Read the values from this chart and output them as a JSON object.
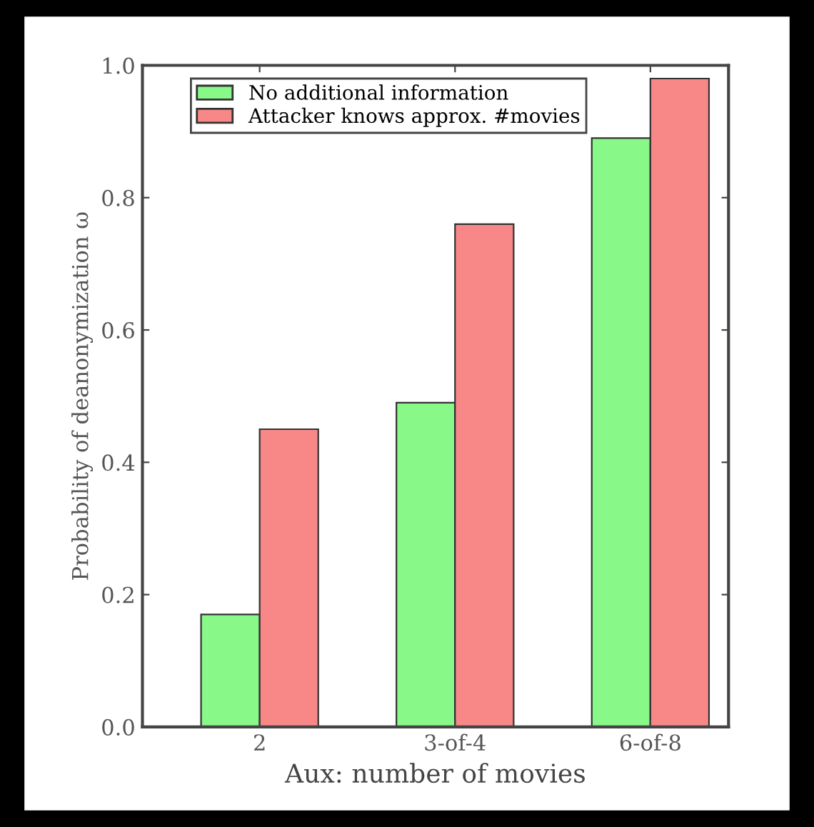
{
  "chart_data": {
    "type": "bar",
    "xlabel": "Aux: number of movies",
    "ylabel": "Probability of deanonymization ω",
    "categories": [
      "2",
      "3-of-4",
      "6-of-8"
    ],
    "series": [
      {
        "name": "No additional information",
        "color": "#88f888",
        "values": [
          0.17,
          0.49,
          0.89
        ]
      },
      {
        "name": "Attacker knows approx. #movies",
        "color": "#f88888",
        "values": [
          0.45,
          0.76,
          0.98
        ]
      }
    ],
    "ylim": [
      0,
      1.0
    ],
    "yticks": [
      {
        "value": 0,
        "label": "0.0"
      },
      {
        "value": 0.2,
        "label": "0.2"
      },
      {
        "value": 0.4,
        "label": "0.4"
      },
      {
        "value": 0.6,
        "label": "0.6"
      },
      {
        "value": 0.8,
        "label": "0.8"
      },
      {
        "value": 1.0,
        "label": "1.0"
      }
    ],
    "grid": false,
    "legend": "top"
  }
}
